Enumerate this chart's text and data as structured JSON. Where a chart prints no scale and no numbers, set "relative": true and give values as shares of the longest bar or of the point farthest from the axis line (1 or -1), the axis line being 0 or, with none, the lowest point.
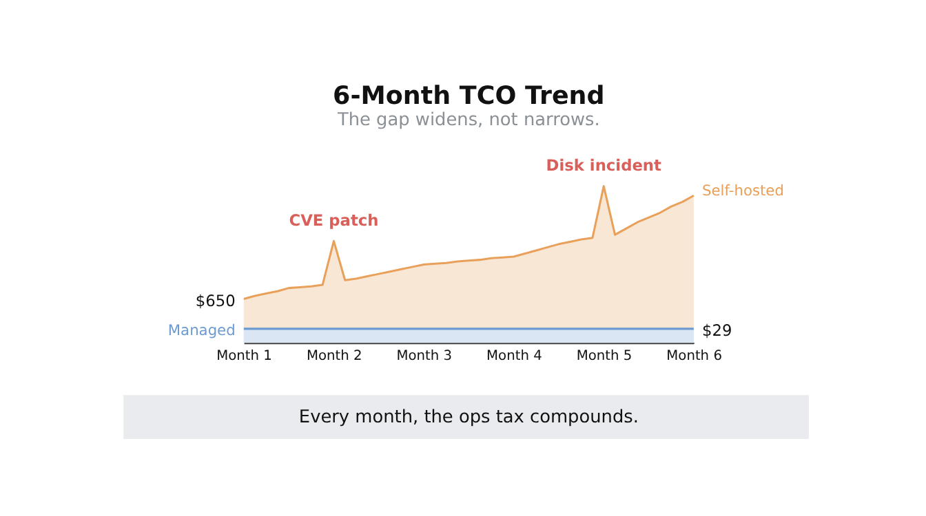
{
  "chart_data": {
    "type": "area",
    "title": "6-Month TCO Trend",
    "subtitle": "The gap widens, not narrows.",
    "relative": true,
    "categories": [
      "Month 1",
      null,
      null,
      null,
      null,
      null,
      null,
      null,
      "Month 2",
      null,
      null,
      null,
      null,
      null,
      null,
      null,
      "Month 3",
      null,
      null,
      null,
      null,
      null,
      null,
      null,
      "Month 4",
      null,
      null,
      null,
      null,
      null,
      null,
      null,
      "Month 5",
      null,
      null,
      null,
      null,
      null,
      null,
      null,
      "Month 6"
    ],
    "series": [
      {
        "name": "Self-hosted",
        "color": "#e8a05a",
        "values": [
          0.28,
          0.3,
          0.315,
          0.33,
          0.35,
          0.355,
          0.36,
          0.37,
          0.65,
          0.4,
          0.41,
          0.425,
          0.44,
          0.455,
          0.47,
          0.485,
          0.5,
          0.505,
          0.51,
          0.52,
          0.525,
          0.53,
          0.54,
          0.545,
          0.55,
          0.57,
          0.59,
          0.61,
          0.63,
          0.645,
          0.66,
          0.67,
          1,
          0.69,
          0.73,
          0.77,
          0.8,
          0.83,
          0.87,
          0.9,
          0.94
        ]
      },
      {
        "name": "Managed",
        "color": "#6d9bd1",
        "values": [
          0.09,
          0.09,
          0.09,
          0.09,
          0.09,
          0.09,
          0.09,
          0.09,
          0.09,
          0.09,
          0.09,
          0.09,
          0.09,
          0.09,
          0.09,
          0.09,
          0.09,
          0.09,
          0.09,
          0.09,
          0.09,
          0.09,
          0.09,
          0.09,
          0.09,
          0.09,
          0.09,
          0.09,
          0.09,
          0.09,
          0.09,
          0.09,
          0.09,
          0.09,
          0.09,
          0.09,
          0.09,
          0.09,
          0.09,
          0.09,
          0.09
        ]
      }
    ],
    "annotations": [
      {
        "text": "CVE patch",
        "x": "Month 2",
        "y": 0.65
      },
      {
        "text": "Disk incident",
        "x": "Month 5",
        "y": 1
      },
      {
        "text": "$650",
        "x": "Month 1",
        "y": 0.28
      },
      {
        "text": "$29",
        "x": "Month 6",
        "y": 0.09
      },
      "Every month, the ops tax compounds."
    ],
    "grid": false
  }
}
